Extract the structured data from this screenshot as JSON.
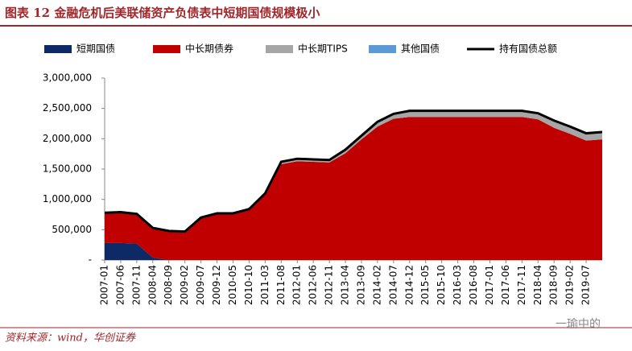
{
  "chart_data": {
    "type": "stacked-area-line",
    "title": "图表 12   金融危机后美联储资产负债表中短期国债规模极小",
    "source": "资料来源：wind，华创证券",
    "watermark": "一瑜中的",
    "categories": [
      "2007-01",
      "2007-06",
      "2007-11",
      "2008-04",
      "2008-09",
      "2009-02",
      "2009-07",
      "2009-12",
      "2010-05",
      "2010-10",
      "2011-03",
      "2011-08",
      "2012-01",
      "2012-06",
      "2012-11",
      "2013-04",
      "2013-09",
      "2014-02",
      "2014-07",
      "2014-12",
      "2015-05",
      "2015-10",
      "2016-03",
      "2016-08",
      "2017-01",
      "2017-06",
      "2017-11",
      "2018-04",
      "2018-09",
      "2019-02",
      "2019-07",
      null
    ],
    "series": [
      {
        "name": "短期国债",
        "color": "#0d2a66",
        "values": [
          280000,
          280000,
          270000,
          40000,
          0,
          0,
          0,
          0,
          0,
          0,
          0,
          0,
          0,
          0,
          0,
          0,
          0,
          0,
          0,
          0,
          0,
          0,
          0,
          0,
          0,
          0,
          0,
          0,
          0,
          0,
          0,
          0
        ]
      },
      {
        "name": "中长期债券",
        "color": "#c00000",
        "values": [
          500000,
          510000,
          490000,
          490000,
          480000,
          470000,
          700000,
          770000,
          770000,
          840000,
          1080000,
          1580000,
          1630000,
          1620000,
          1610000,
          1760000,
          1990000,
          2200000,
          2330000,
          2360000,
          2360000,
          2360000,
          2360000,
          2360000,
          2360000,
          2360000,
          2360000,
          2320000,
          2180000,
          2080000,
          1970000,
          1990000
        ]
      },
      {
        "name": "中长期TIPS",
        "color": "#a6a6a6",
        "values": [
          0,
          0,
          0,
          0,
          0,
          0,
          0,
          0,
          0,
          0,
          20000,
          40000,
          40000,
          40000,
          40000,
          60000,
          60000,
          80000,
          80000,
          100000,
          100000,
          100000,
          100000,
          100000,
          100000,
          100000,
          100000,
          100000,
          120000,
          120000,
          120000,
          120000
        ]
      },
      {
        "name": "其他国债",
        "color": "#5b9bd5",
        "values": [
          0,
          0,
          0,
          0,
          0,
          0,
          0,
          0,
          0,
          0,
          0,
          0,
          0,
          0,
          0,
          0,
          0,
          0,
          0,
          0,
          0,
          0,
          0,
          0,
          0,
          0,
          0,
          0,
          0,
          0,
          0,
          0
        ]
      },
      {
        "name": "持有国债总额",
        "color": "#000000",
        "type": "line",
        "values": [
          780000,
          790000,
          760000,
          530000,
          480000,
          470000,
          700000,
          770000,
          770000,
          840000,
          1100000,
          1620000,
          1670000,
          1660000,
          1650000,
          1820000,
          2050000,
          2280000,
          2410000,
          2460000,
          2460000,
          2460000,
          2460000,
          2460000,
          2460000,
          2460000,
          2460000,
          2420000,
          2300000,
          2200000,
          2090000,
          2110000
        ]
      }
    ],
    "ylim": [
      0,
      3000000
    ],
    "yticks": [
      {
        "value": 0,
        "label": "-"
      },
      {
        "value": 500000,
        "label": "500,000"
      },
      {
        "value": 1000000,
        "label": "1,000,000"
      },
      {
        "value": 1500000,
        "label": "1,500,000"
      },
      {
        "value": 2000000,
        "label": "2,000,000"
      },
      {
        "value": 2500000,
        "label": "2,500,000"
      },
      {
        "value": 3000000,
        "label": "3,000,000"
      }
    ]
  }
}
